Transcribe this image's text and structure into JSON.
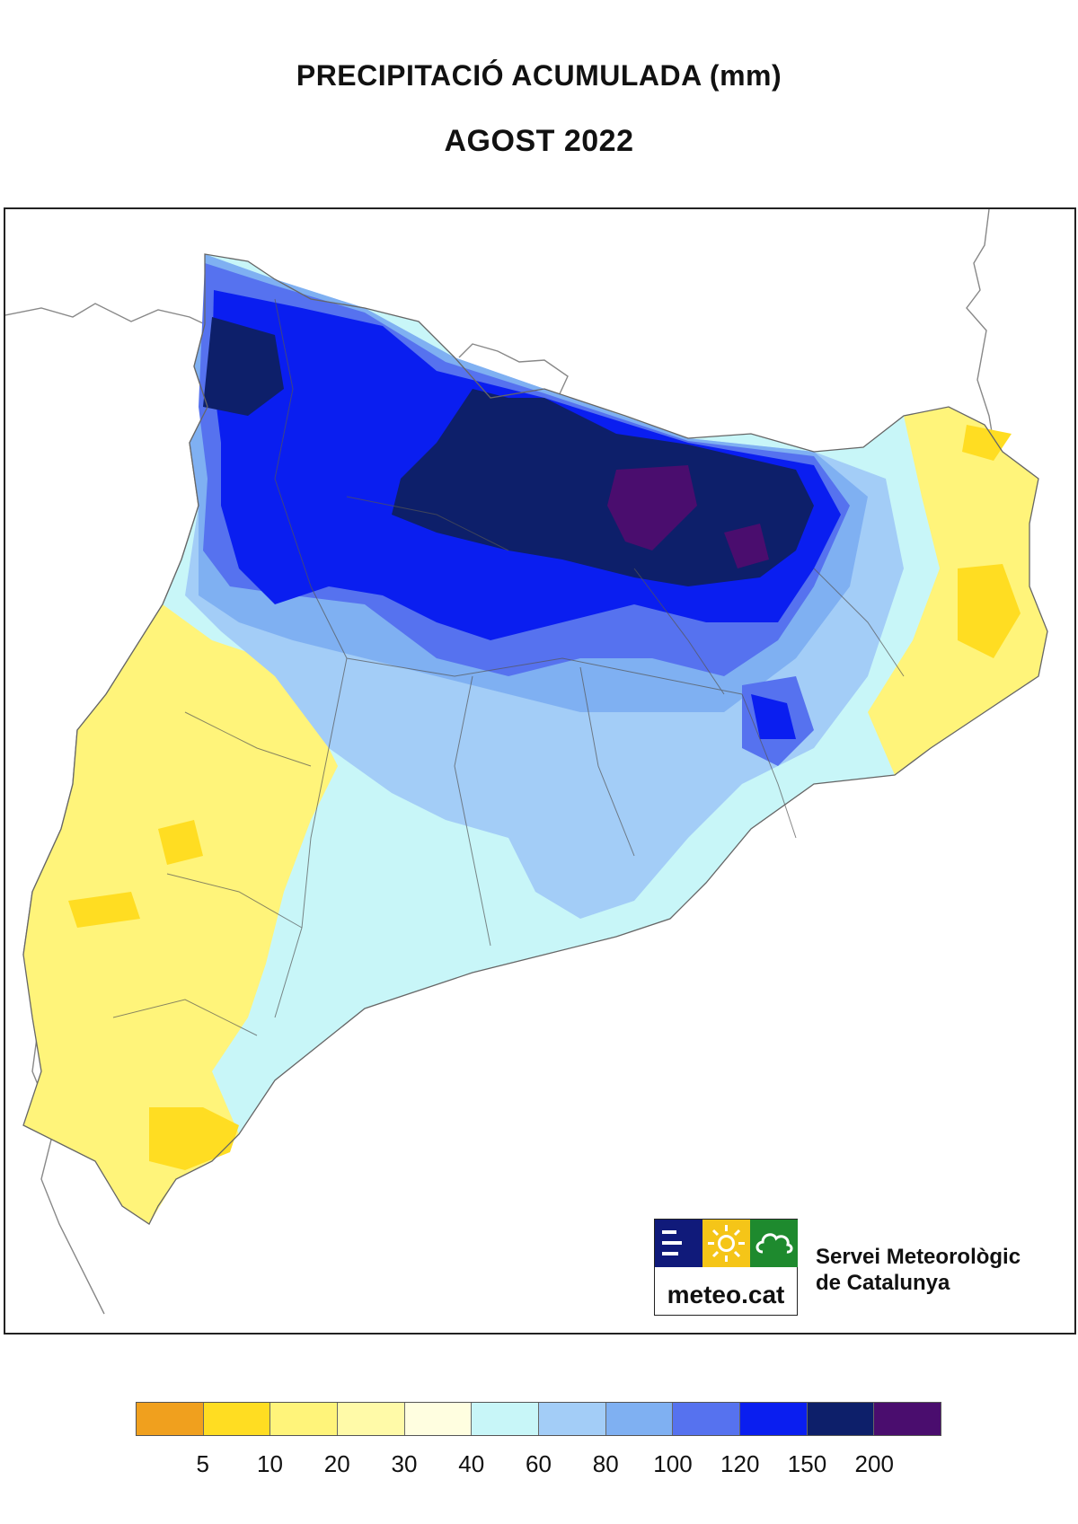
{
  "header": {
    "title": "PRECIPITACIÓ ACUMULADA (mm)",
    "subtitle": "AGOST 2022"
  },
  "logo": {
    "url_text": "meteo.cat",
    "org_line1": "Servei Meteorològic",
    "org_line2": "de Catalunya",
    "colors": {
      "navy": "#101a7a",
      "yellow": "#f5c518",
      "green": "#1e8a2e"
    },
    "icons": [
      "waves-icon",
      "sun-icon",
      "cloud-icon"
    ]
  },
  "legend": {
    "labels": [
      "5",
      "10",
      "20",
      "30",
      "40",
      "60",
      "80",
      "100",
      "120",
      "150",
      "200"
    ],
    "colors": [
      "#f0a01e",
      "#ffdd22",
      "#fff47a",
      "#fffaa8",
      "#fffee0",
      "#c8f6f8",
      "#a3cdf7",
      "#7fb0f2",
      "#5672ef",
      "#0a1ef0",
      "#0d1f6a",
      "#4a0d6e"
    ]
  }
}
